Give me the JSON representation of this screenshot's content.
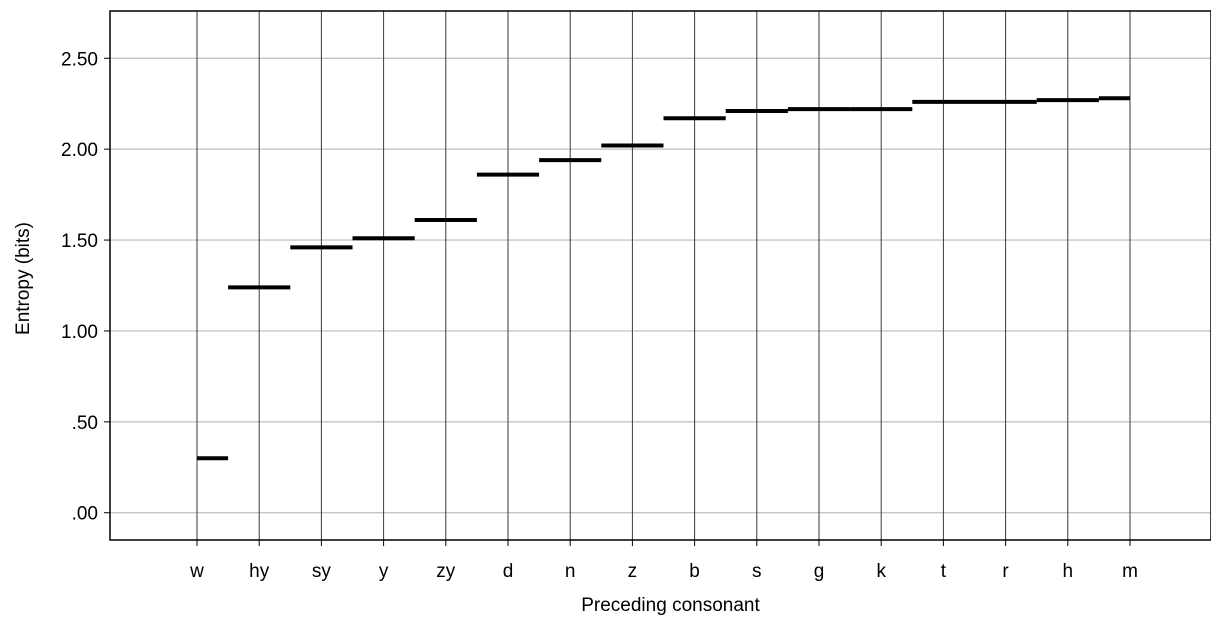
{
  "chart_data": {
    "type": "step-line",
    "title": "",
    "xlabel": "Preceding consonant",
    "ylabel": "Entropy (bits)",
    "categories": [
      "w",
      "hy",
      "sy",
      "y",
      "zy",
      "d",
      "n",
      "z",
      "b",
      "s",
      "g",
      "k",
      "t",
      "r",
      "h",
      "m"
    ],
    "values": [
      0.3,
      1.24,
      1.46,
      1.51,
      1.61,
      1.86,
      1.94,
      2.02,
      2.17,
      2.21,
      2.22,
      2.22,
      2.26,
      2.26,
      2.27,
      2.28
    ],
    "ylim": [
      -0.15,
      2.76
    ],
    "y_ticks": [
      0,
      0.5,
      1.0,
      1.5,
      2.0,
      2.5
    ],
    "y_tick_labels": [
      ".00",
      ".50",
      "1.00",
      "1.50",
      "2.00",
      "2.50"
    ],
    "grid": {
      "horizontal": true,
      "vertical": true
    },
    "colors": {
      "line": "#000000",
      "grid_h": "#bdbdbd",
      "grid_v": "#3a3a3a",
      "frame": "#000000"
    }
  }
}
